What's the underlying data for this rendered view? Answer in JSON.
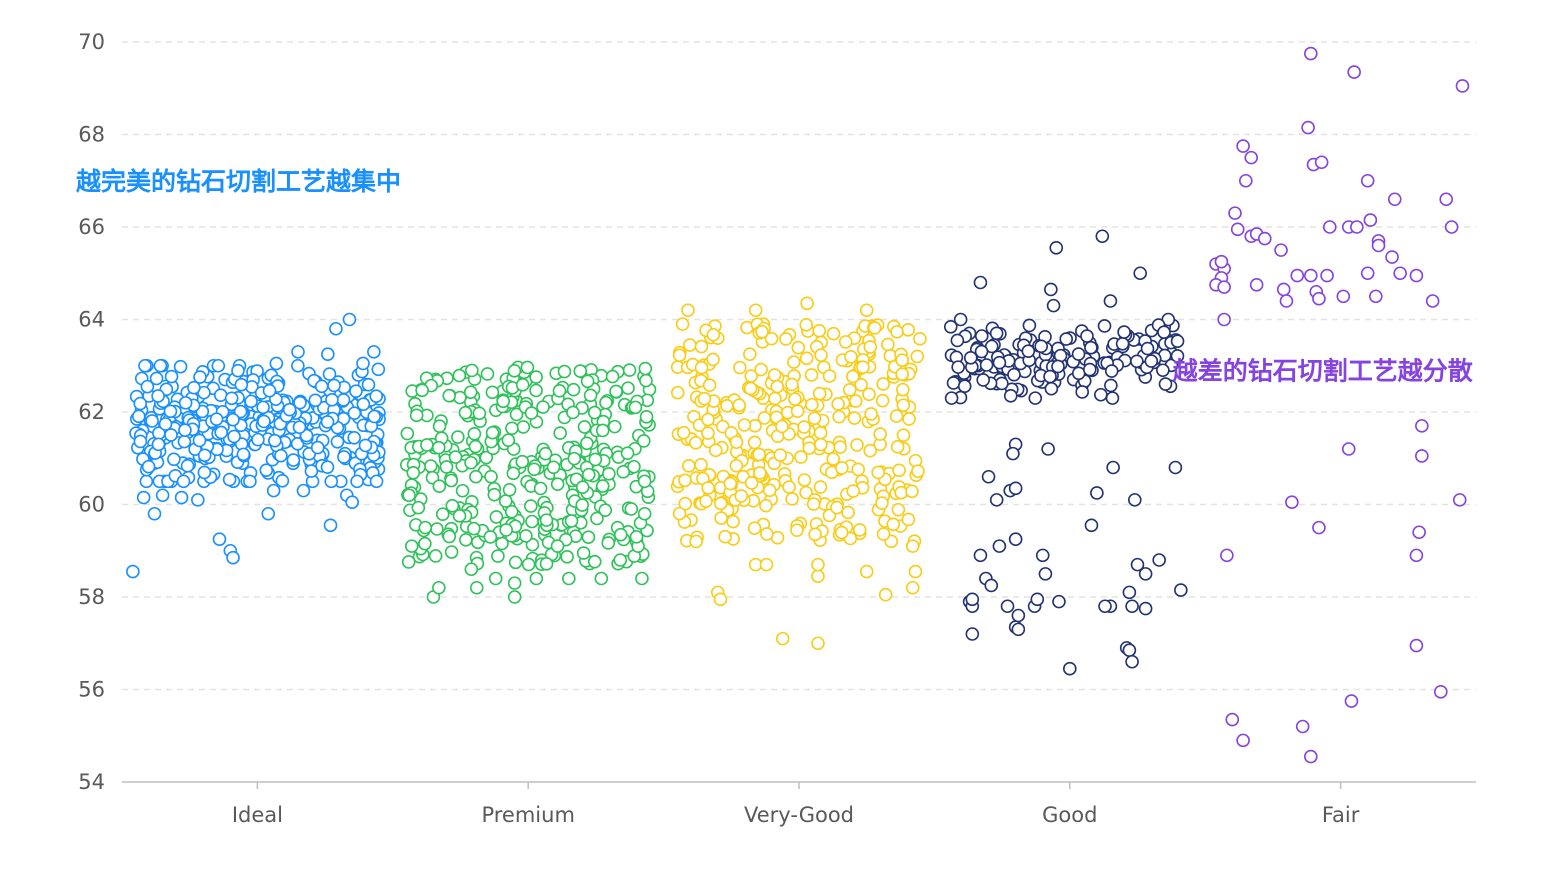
{
  "chart_data": {
    "type": "scatter",
    "title": "",
    "xlabel": "",
    "ylabel": "",
    "categories": [
      "Ideal",
      "Premium",
      "Very-Good",
      "Good",
      "Fair"
    ],
    "ylim": [
      54,
      70
    ],
    "yticks": [
      54,
      56,
      58,
      60,
      62,
      64,
      66,
      68,
      70
    ],
    "grid": true,
    "colors": {
      "Ideal": "#1890ff",
      "Premium": "#2fc25b",
      "Very-Good": "#facc14",
      "Good": "#223273",
      "Fair": "#8543e0"
    },
    "annotations": [
      {
        "text": "越完美的钻石切割工艺越集中",
        "color": "#1890ff",
        "category": "Ideal",
        "y": 67.0,
        "align": "left-edge"
      },
      {
        "text": "越差的钻石切割工艺越分散",
        "color": "#8543e0",
        "category": "Good",
        "y": 62.9,
        "align": "right-of-category"
      }
    ],
    "series": [
      {
        "name": "Ideal",
        "points": [
          {
            "x": -0.46,
            "y": 58.55
          },
          {
            "x": -0.42,
            "y": 60.15
          },
          {
            "x": -0.38,
            "y": 59.8
          },
          {
            "x": -0.35,
            "y": 60.2
          },
          {
            "x": -0.28,
            "y": 60.15
          },
          {
            "x": -0.22,
            "y": 60.1
          },
          {
            "x": -0.14,
            "y": 59.25
          },
          {
            "x": -0.1,
            "y": 59.0
          },
          {
            "x": -0.09,
            "y": 58.85
          },
          {
            "x": 0.04,
            "y": 59.8
          },
          {
            "x": 0.06,
            "y": 60.3
          },
          {
            "x": 0.17,
            "y": 60.3
          },
          {
            "x": 0.27,
            "y": 59.55
          },
          {
            "x": 0.33,
            "y": 60.2
          },
          {
            "x": 0.35,
            "y": 60.05
          },
          {
            "x": 0.44,
            "y": 60.5
          },
          {
            "x": 0.15,
            "y": 63.3
          },
          {
            "x": 0.26,
            "y": 63.25
          },
          {
            "x": 0.29,
            "y": 63.8
          },
          {
            "x": 0.34,
            "y": 64.0
          },
          {
            "x": 0.43,
            "y": 63.3
          },
          {
            "x": 0.39,
            "y": 63.05
          },
          {
            "x": 0.07,
            "y": 63.05
          }
        ],
        "cluster": {
          "x_range": [
            -0.45,
            0.45
          ],
          "y_range": [
            60.5,
            63.0
          ],
          "count": 380
        }
      },
      {
        "name": "Premium",
        "points": [
          {
            "x": -0.44,
            "y": 60.2
          },
          {
            "x": -0.43,
            "y": 59.1
          },
          {
            "x": -0.35,
            "y": 58.0
          },
          {
            "x": -0.33,
            "y": 58.2
          },
          {
            "x": -0.21,
            "y": 58.6
          },
          {
            "x": -0.19,
            "y": 58.2
          },
          {
            "x": -0.12,
            "y": 58.4
          },
          {
            "x": -0.05,
            "y": 58.3
          },
          {
            "x": -0.05,
            "y": 58.0
          },
          {
            "x": 0.03,
            "y": 58.4
          },
          {
            "x": 0.15,
            "y": 58.4
          },
          {
            "x": 0.27,
            "y": 58.4
          },
          {
            "x": 0.34,
            "y": 58.8
          },
          {
            "x": 0.42,
            "y": 58.4
          },
          {
            "x": 0.43,
            "y": 60.5
          },
          {
            "x": 0.43,
            "y": 59.8
          },
          {
            "x": 0.4,
            "y": 59.3
          },
          {
            "x": -0.38,
            "y": 59.5
          }
        ],
        "cluster": {
          "x_range": [
            -0.45,
            0.45
          ],
          "y_range": [
            58.7,
            63.0
          ],
          "count": 360
        }
      },
      {
        "name": "Very-Good",
        "points": [
          {
            "x": -0.43,
            "y": 63.9
          },
          {
            "x": -0.41,
            "y": 64.2
          },
          {
            "x": -0.38,
            "y": 59.2
          },
          {
            "x": -0.3,
            "y": 58.1
          },
          {
            "x": -0.29,
            "y": 57.95
          },
          {
            "x": -0.16,
            "y": 58.7
          },
          {
            "x": -0.16,
            "y": 64.2
          },
          {
            "x": -0.12,
            "y": 58.7
          },
          {
            "x": -0.06,
            "y": 57.1
          },
          {
            "x": 0.03,
            "y": 64.35
          },
          {
            "x": 0.07,
            "y": 58.45
          },
          {
            "x": 0.07,
            "y": 58.7
          },
          {
            "x": 0.07,
            "y": 57.0
          },
          {
            "x": 0.25,
            "y": 58.55
          },
          {
            "x": 0.25,
            "y": 64.2
          },
          {
            "x": 0.32,
            "y": 58.05
          },
          {
            "x": 0.42,
            "y": 58.2
          },
          {
            "x": 0.43,
            "y": 58.55
          },
          {
            "x": 0.42,
            "y": 59.1
          }
        ],
        "cluster": {
          "x_range": [
            -0.45,
            0.45
          ],
          "y_range": [
            59.2,
            63.9
          ],
          "count": 340
        }
      },
      {
        "name": "Good",
        "points": [
          {
            "x": -0.05,
            "y": 65.55
          },
          {
            "x": 0.12,
            "y": 65.8
          },
          {
            "x": -0.33,
            "y": 64.8
          },
          {
            "x": -0.07,
            "y": 64.65
          },
          {
            "x": 0.15,
            "y": 64.4
          },
          {
            "x": 0.26,
            "y": 65.0
          },
          {
            "x": -0.06,
            "y": 64.3
          },
          {
            "x": -0.37,
            "y": 57.9
          },
          {
            "x": -0.36,
            "y": 57.8
          },
          {
            "x": -0.36,
            "y": 57.95
          },
          {
            "x": -0.36,
            "y": 57.2
          },
          {
            "x": -0.31,
            "y": 58.4
          },
          {
            "x": -0.29,
            "y": 58.25
          },
          {
            "x": -0.23,
            "y": 57.8
          },
          {
            "x": -0.2,
            "y": 57.35
          },
          {
            "x": -0.19,
            "y": 57.6
          },
          {
            "x": -0.19,
            "y": 57.3
          },
          {
            "x": -0.13,
            "y": 57.8
          },
          {
            "x": -0.12,
            "y": 57.95
          },
          {
            "x": -0.04,
            "y": 57.9
          },
          {
            "x": 0.0,
            "y": 56.45
          },
          {
            "x": 0.15,
            "y": 57.8
          },
          {
            "x": 0.13,
            "y": 57.8
          },
          {
            "x": 0.23,
            "y": 57.8
          },
          {
            "x": 0.22,
            "y": 58.1
          },
          {
            "x": 0.28,
            "y": 57.75
          },
          {
            "x": 0.21,
            "y": 56.9
          },
          {
            "x": 0.22,
            "y": 56.85
          },
          {
            "x": 0.23,
            "y": 56.6
          },
          {
            "x": 0.41,
            "y": 58.15
          },
          {
            "x": 0.39,
            "y": 60.8
          },
          {
            "x": -0.33,
            "y": 58.9
          },
          {
            "x": -0.26,
            "y": 59.1
          },
          {
            "x": -0.2,
            "y": 59.25
          },
          {
            "x": -0.1,
            "y": 58.9
          },
          {
            "x": -0.09,
            "y": 58.5
          },
          {
            "x": 0.08,
            "y": 59.55
          },
          {
            "x": 0.25,
            "y": 58.7
          },
          {
            "x": 0.28,
            "y": 58.5
          },
          {
            "x": 0.33,
            "y": 58.8
          },
          {
            "x": -0.3,
            "y": 60.6
          },
          {
            "x": -0.27,
            "y": 60.1
          },
          {
            "x": -0.22,
            "y": 60.3
          },
          {
            "x": -0.2,
            "y": 60.35
          },
          {
            "x": -0.08,
            "y": 61.2
          },
          {
            "x": 0.1,
            "y": 60.25
          },
          {
            "x": 0.16,
            "y": 60.8
          },
          {
            "x": 0.24,
            "y": 60.1
          },
          {
            "x": -0.2,
            "y": 61.3
          },
          {
            "x": -0.21,
            "y": 61.1
          }
        ],
        "cluster": {
          "x_range": [
            -0.44,
            0.4
          ],
          "y_range": [
            62.3,
            64.0
          ],
          "count": 170
        }
      },
      {
        "name": "Fair",
        "points": [
          {
            "x": -0.11,
            "y": 69.75
          },
          {
            "x": -0.1,
            "y": 67.35
          },
          {
            "x": -0.12,
            "y": 68.15
          },
          {
            "x": 0.05,
            "y": 69.35
          },
          {
            "x": 0.45,
            "y": 69.05
          },
          {
            "x": -0.36,
            "y": 67.75
          },
          {
            "x": -0.33,
            "y": 67.5
          },
          {
            "x": -0.35,
            "y": 67.0
          },
          {
            "x": -0.07,
            "y": 67.4
          },
          {
            "x": 0.1,
            "y": 67.0
          },
          {
            "x": 0.2,
            "y": 66.6
          },
          {
            "x": 0.39,
            "y": 66.6
          },
          {
            "x": 0.41,
            "y": 66.0
          },
          {
            "x": -0.39,
            "y": 66.3
          },
          {
            "x": -0.38,
            "y": 65.95
          },
          {
            "x": -0.33,
            "y": 65.8
          },
          {
            "x": -0.31,
            "y": 65.85
          },
          {
            "x": -0.28,
            "y": 65.75
          },
          {
            "x": -0.22,
            "y": 65.5
          },
          {
            "x": -0.04,
            "y": 66.0
          },
          {
            "x": 0.11,
            "y": 66.15
          },
          {
            "x": 0.03,
            "y": 66.0
          },
          {
            "x": 0.06,
            "y": 66.0
          },
          {
            "x": 0.14,
            "y": 65.7
          },
          {
            "x": 0.14,
            "y": 65.6
          },
          {
            "x": 0.19,
            "y": 65.35
          },
          {
            "x": -0.46,
            "y": 65.2
          },
          {
            "x": -0.43,
            "y": 65.1
          },
          {
            "x": -0.44,
            "y": 64.9
          },
          {
            "x": -0.44,
            "y": 65.25
          },
          {
            "x": -0.46,
            "y": 64.75
          },
          {
            "x": -0.43,
            "y": 64.7
          },
          {
            "x": -0.43,
            "y": 64.0
          },
          {
            "x": -0.31,
            "y": 64.75
          },
          {
            "x": -0.21,
            "y": 64.65
          },
          {
            "x": -0.2,
            "y": 64.4
          },
          {
            "x": -0.16,
            "y": 64.95
          },
          {
            "x": -0.11,
            "y": 64.95
          },
          {
            "x": -0.09,
            "y": 64.6
          },
          {
            "x": -0.08,
            "y": 64.45
          },
          {
            "x": -0.05,
            "y": 64.95
          },
          {
            "x": 0.01,
            "y": 64.5
          },
          {
            "x": 0.1,
            "y": 65.0
          },
          {
            "x": 0.13,
            "y": 64.5
          },
          {
            "x": 0.22,
            "y": 65.0
          },
          {
            "x": 0.28,
            "y": 64.95
          },
          {
            "x": 0.34,
            "y": 64.4
          },
          {
            "x": 0.3,
            "y": 61.7
          },
          {
            "x": 0.03,
            "y": 61.2
          },
          {
            "x": 0.3,
            "y": 61.05
          },
          {
            "x": 0.44,
            "y": 60.1
          },
          {
            "x": -0.18,
            "y": 60.05
          },
          {
            "x": -0.08,
            "y": 59.5
          },
          {
            "x": -0.42,
            "y": 58.9
          },
          {
            "x": 0.29,
            "y": 59.4
          },
          {
            "x": 0.28,
            "y": 58.9
          },
          {
            "x": 0.28,
            "y": 56.95
          },
          {
            "x": 0.04,
            "y": 55.75
          },
          {
            "x": 0.37,
            "y": 55.95
          },
          {
            "x": -0.4,
            "y": 55.35
          },
          {
            "x": -0.36,
            "y": 54.9
          },
          {
            "x": -0.14,
            "y": 55.2
          },
          {
            "x": -0.11,
            "y": 54.55
          }
        ]
      }
    ]
  }
}
